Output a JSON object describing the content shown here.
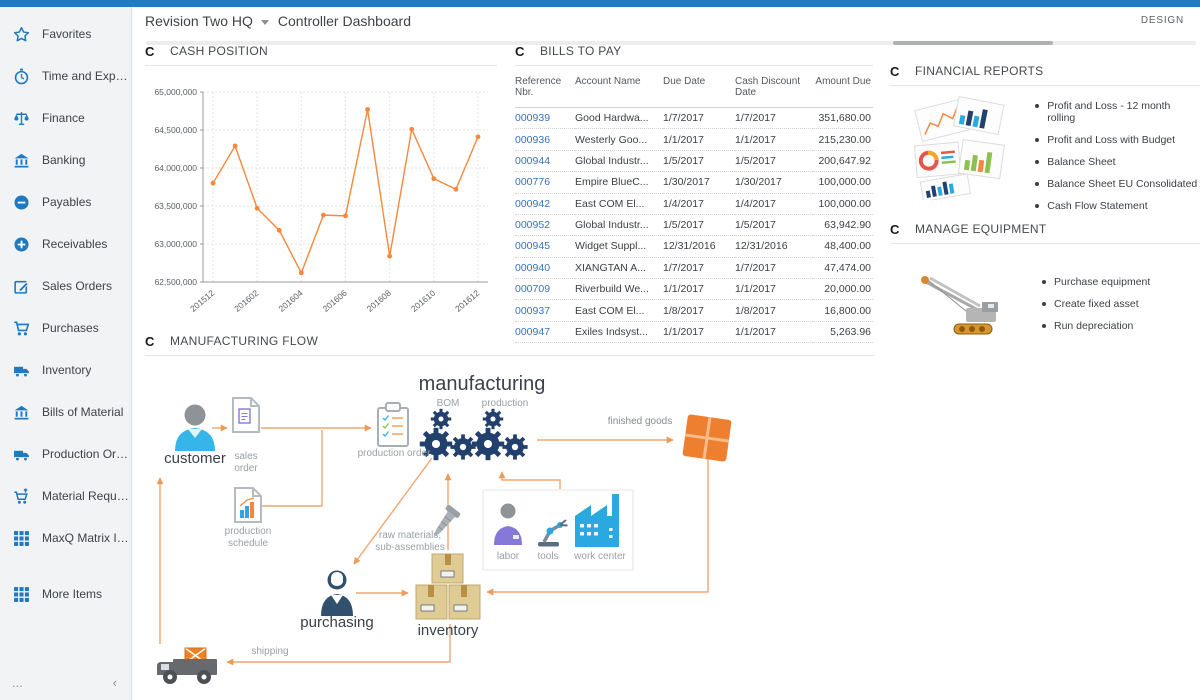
{
  "header": {
    "company": "Revision Two HQ",
    "page_title": "Controller Dashboard",
    "design_label": "DESIGN"
  },
  "sidebar": {
    "items": [
      {
        "label": "Favorites",
        "icon": "star"
      },
      {
        "label": "Time and Expenses",
        "icon": "stopwatch"
      },
      {
        "label": "Finance",
        "icon": "scales"
      },
      {
        "label": "Banking",
        "icon": "bank"
      },
      {
        "label": "Payables",
        "icon": "minus-circle"
      },
      {
        "label": "Receivables",
        "icon": "plus-circle"
      },
      {
        "label": "Sales Orders",
        "icon": "pencil-square"
      },
      {
        "label": "Purchases",
        "icon": "cart"
      },
      {
        "label": "Inventory",
        "icon": "truck"
      },
      {
        "label": "Bills of Material",
        "icon": "bank"
      },
      {
        "label": "Production Orders",
        "icon": "truck"
      },
      {
        "label": "Material Requirem...",
        "icon": "cart-arrow"
      },
      {
        "label": "MaxQ Matrix Invent...",
        "icon": "grid"
      }
    ],
    "more_item": {
      "label": "More Items",
      "icon": "grid"
    },
    "footer": {
      "ellipsis": "...",
      "collapse": "‹"
    }
  },
  "panels": {
    "cash_position": {
      "title": "CASH POSITION"
    },
    "bills_to_pay": {
      "title": "BILLS TO PAY",
      "columns": [
        "Reference Nbr.",
        "Account Name",
        "Due Date",
        "Cash Discount Date",
        "Amount Due"
      ],
      "rows": [
        [
          "000939",
          "Good Hardwa...",
          "1/7/2017",
          "1/7/2017",
          "351,680.00"
        ],
        [
          "000936",
          "Westerly Goo...",
          "1/1/2017",
          "1/1/2017",
          "215,230.00"
        ],
        [
          "000944",
          "Global Industr...",
          "1/5/2017",
          "1/5/2017",
          "200,647.92"
        ],
        [
          "000776",
          "Empire BlueC...",
          "1/30/2017",
          "1/30/2017",
          "100,000.00"
        ],
        [
          "000942",
          "East COM El...",
          "1/4/2017",
          "1/4/2017",
          "100,000.00"
        ],
        [
          "000952",
          "Global Industr...",
          "1/5/2017",
          "1/5/2017",
          "63,942.90"
        ],
        [
          "000945",
          "Widget Suppl...",
          "12/31/2016",
          "12/31/2016",
          "48,400.00"
        ],
        [
          "000940",
          "XIANGTAN A...",
          "1/7/2017",
          "1/7/2017",
          "47,474.00"
        ],
        [
          "000709",
          "Riverbuild We...",
          "1/1/2017",
          "1/1/2017",
          "20,000.00"
        ],
        [
          "000937",
          "East COM El...",
          "1/8/2017",
          "1/8/2017",
          "16,800.00"
        ],
        [
          "000947",
          "Exiles Indsyst...",
          "1/1/2017",
          "1/1/2017",
          "5,263.96"
        ]
      ]
    },
    "financial_reports": {
      "title": "FINANCIAL REPORTS",
      "links": [
        "Profit and Loss - 12 month rolling",
        "Profit and Loss with Budget",
        "Balance Sheet",
        "Balance Sheet EU Consolidated",
        "Cash Flow Statement"
      ]
    },
    "manage_equipment": {
      "title": "MANAGE EQUIPMENT",
      "links": [
        "Purchase equipment",
        "Create fixed asset",
        "Run depreciation"
      ]
    },
    "manufacturing_flow": {
      "title": "MANUFACTURING FLOW",
      "labels": {
        "title": "manufacturing",
        "bom": "BOM",
        "production": "production",
        "customer": "customer",
        "sales_order": "sales order",
        "production_schedule": "production schedule",
        "production_order": "production order",
        "finished_goods": "finished goods",
        "raw_materials": "raw materials, sub-assemblies",
        "labor": "labor",
        "tools": "tools",
        "work_center": "work center",
        "purchasing": "purchasing",
        "inventory": "inventory",
        "shipping": "shipping"
      }
    }
  },
  "chart_data": {
    "type": "line",
    "title": "Cash Position",
    "x": [
      "201512",
      "201601",
      "201602",
      "201603",
      "201604",
      "201605",
      "201606",
      "201607",
      "201608",
      "201609",
      "201610",
      "201611",
      "201612"
    ],
    "values": [
      63800000,
      64290000,
      63470000,
      63180000,
      62620000,
      63380000,
      63370000,
      64770000,
      62840000,
      64510000,
      63860000,
      63720000,
      64410000
    ],
    "xtick_labels": [
      "201512",
      "201602",
      "201604",
      "201606",
      "201608",
      "201610",
      "201612"
    ],
    "xlabel": "",
    "ylabel": "",
    "ylim": [
      62500000,
      65000000
    ],
    "ytick_step": 500000,
    "grid": true,
    "legend": false,
    "line_color": "#f6873c"
  },
  "colors": {
    "accent_blue": "#1f78c1",
    "topbar_blue": "#1e7bc4",
    "link_blue": "#3a72b9",
    "orange": "#f6873c",
    "arrow_orange": "#f0a66e",
    "navy": "#21406e"
  }
}
